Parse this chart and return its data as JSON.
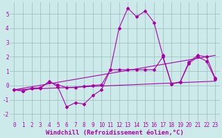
{
  "x": [
    0,
    1,
    2,
    3,
    4,
    5,
    6,
    7,
    8,
    9,
    10,
    11,
    12,
    13,
    14,
    15,
    16,
    17,
    18,
    19,
    20,
    21,
    22,
    23
  ],
  "line1": [
    -0.3,
    -0.4,
    -0.2,
    -0.2,
    0.3,
    -0.1,
    -1.5,
    -1.2,
    -1.3,
    -0.7,
    -0.3,
    1.1,
    4.0,
    5.4,
    4.8,
    5.2,
    4.4,
    2.1,
    0.1,
    0.25,
    1.65,
    2.1,
    2.0,
    0.5
  ],
  "line2": [
    -0.3,
    -0.38,
    -0.2,
    -0.15,
    0.25,
    0.05,
    -0.15,
    -0.15,
    -0.05,
    0.0,
    0.05,
    1.1,
    1.1,
    1.1,
    1.1,
    1.1,
    1.1,
    2.0,
    0.1,
    0.25,
    1.55,
    2.0,
    1.7,
    0.45
  ],
  "line3": [
    [
      0,
      23
    ],
    [
      -0.3,
      0.3
    ]
  ],
  "line4": [
    [
      0,
      23
    ],
    [
      -0.3,
      2.1
    ]
  ],
  "bg_color": "#cceaea",
  "grid_color": "#9bbcbc",
  "line_color": "#aa00aa",
  "xlim": [
    -0.5,
    23.5
  ],
  "ylim": [
    -2.5,
    5.8
  ],
  "xlabel": "Windchill (Refroidissement éolien,°C)",
  "yticks": [
    -2,
    -1,
    0,
    1,
    2,
    3,
    4,
    5
  ],
  "font_size": 5.5,
  "xlabel_fontsize": 6.5,
  "marker": "D",
  "markersize": 2.0,
  "linewidth": 0.8
}
